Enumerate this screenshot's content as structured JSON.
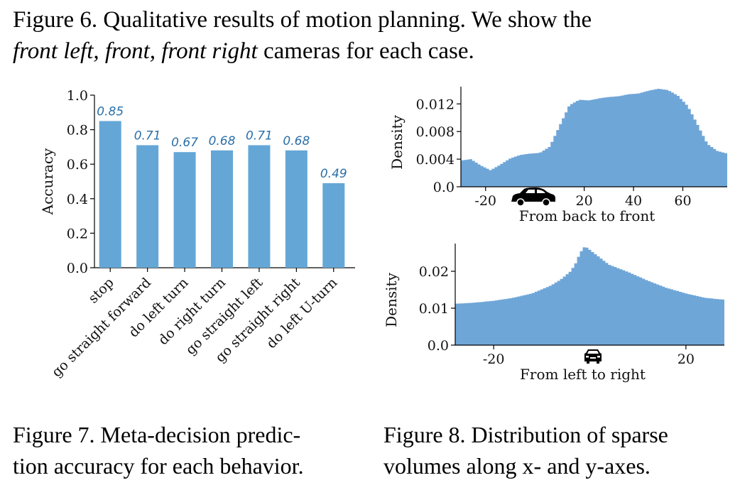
{
  "figure6_caption": {
    "line1": "Figure 6.  Qualitative results of motion planning.  We show the",
    "line2_italic": "front left, front, front right",
    "line2_rest": " cameras for each case."
  },
  "figure7_caption": {
    "line1": "Figure 7. Meta-decision predic-",
    "line2": "tion accuracy for each behavior."
  },
  "figure8_caption": {
    "line1": "Figure 8.  Distribution of sparse",
    "line2": "volumes along x- and y-axes."
  },
  "colors": {
    "bar": "#64a7d6",
    "hist": "#6fa6d8",
    "label": "#2b6fa8"
  },
  "chart_data": [
    {
      "type": "bar",
      "categories": [
        "stop",
        "go straight forward",
        "do left turn",
        "do right turn",
        "go straight left",
        "go straight right",
        "do left U-turn"
      ],
      "values": [
        0.85,
        0.71,
        0.67,
        0.68,
        0.71,
        0.68,
        0.49
      ],
      "data_labels": [
        "0.85",
        "0.71",
        "0.67",
        "0.68",
        "0.71",
        "0.68",
        "0.49"
      ],
      "ylabel": "Accuracy",
      "ylim": [
        0,
        1.0
      ],
      "yticks": [
        "0.0",
        "0.2",
        "0.4",
        "0.6",
        "0.8",
        "1.0"
      ]
    },
    {
      "type": "area",
      "xlabel": "From back to front",
      "ylabel": "Density",
      "xlim": [
        -30,
        78
      ],
      "ylim": [
        0,
        0.0145
      ],
      "xticks": [
        "-20",
        "20",
        "40",
        "60"
      ],
      "yticks": [
        "0.0",
        "0.004",
        "0.008",
        "0.012"
      ],
      "x": [
        -30,
        -26,
        -22,
        -18,
        -14,
        -10,
        -6,
        -2,
        2,
        6,
        10,
        14,
        18,
        22,
        26,
        30,
        34,
        38,
        42,
        46,
        50,
        54,
        58,
        62,
        66,
        70,
        74,
        78
      ],
      "y": [
        0.0038,
        0.004,
        0.0031,
        0.0024,
        0.0032,
        0.0041,
        0.0046,
        0.0048,
        0.0049,
        0.0058,
        0.0088,
        0.0118,
        0.0126,
        0.0125,
        0.0128,
        0.013,
        0.0131,
        0.0134,
        0.0135,
        0.0139,
        0.0142,
        0.014,
        0.0132,
        0.0117,
        0.009,
        0.0062,
        0.0052,
        0.0048
      ]
    },
    {
      "type": "area",
      "xlabel": "From left to right",
      "ylabel": "Density",
      "xlim": [
        -28,
        28
      ],
      "ylim": [
        0,
        0.0275
      ],
      "xticks": [
        "-20",
        "20"
      ],
      "yticks": [
        "0.0",
        "0.01",
        "0.02"
      ],
      "x": [
        -28,
        -24,
        -20,
        -16,
        -12,
        -8,
        -6,
        -4,
        -3,
        -2,
        -1,
        0,
        2,
        4,
        8,
        12,
        16,
        20,
        24,
        28
      ],
      "y": [
        0.0112,
        0.0115,
        0.012,
        0.0128,
        0.014,
        0.0162,
        0.0178,
        0.02,
        0.022,
        0.025,
        0.0268,
        0.0258,
        0.0238,
        0.0218,
        0.0198,
        0.0175,
        0.0155,
        0.014,
        0.0128,
        0.0123
      ]
    }
  ]
}
